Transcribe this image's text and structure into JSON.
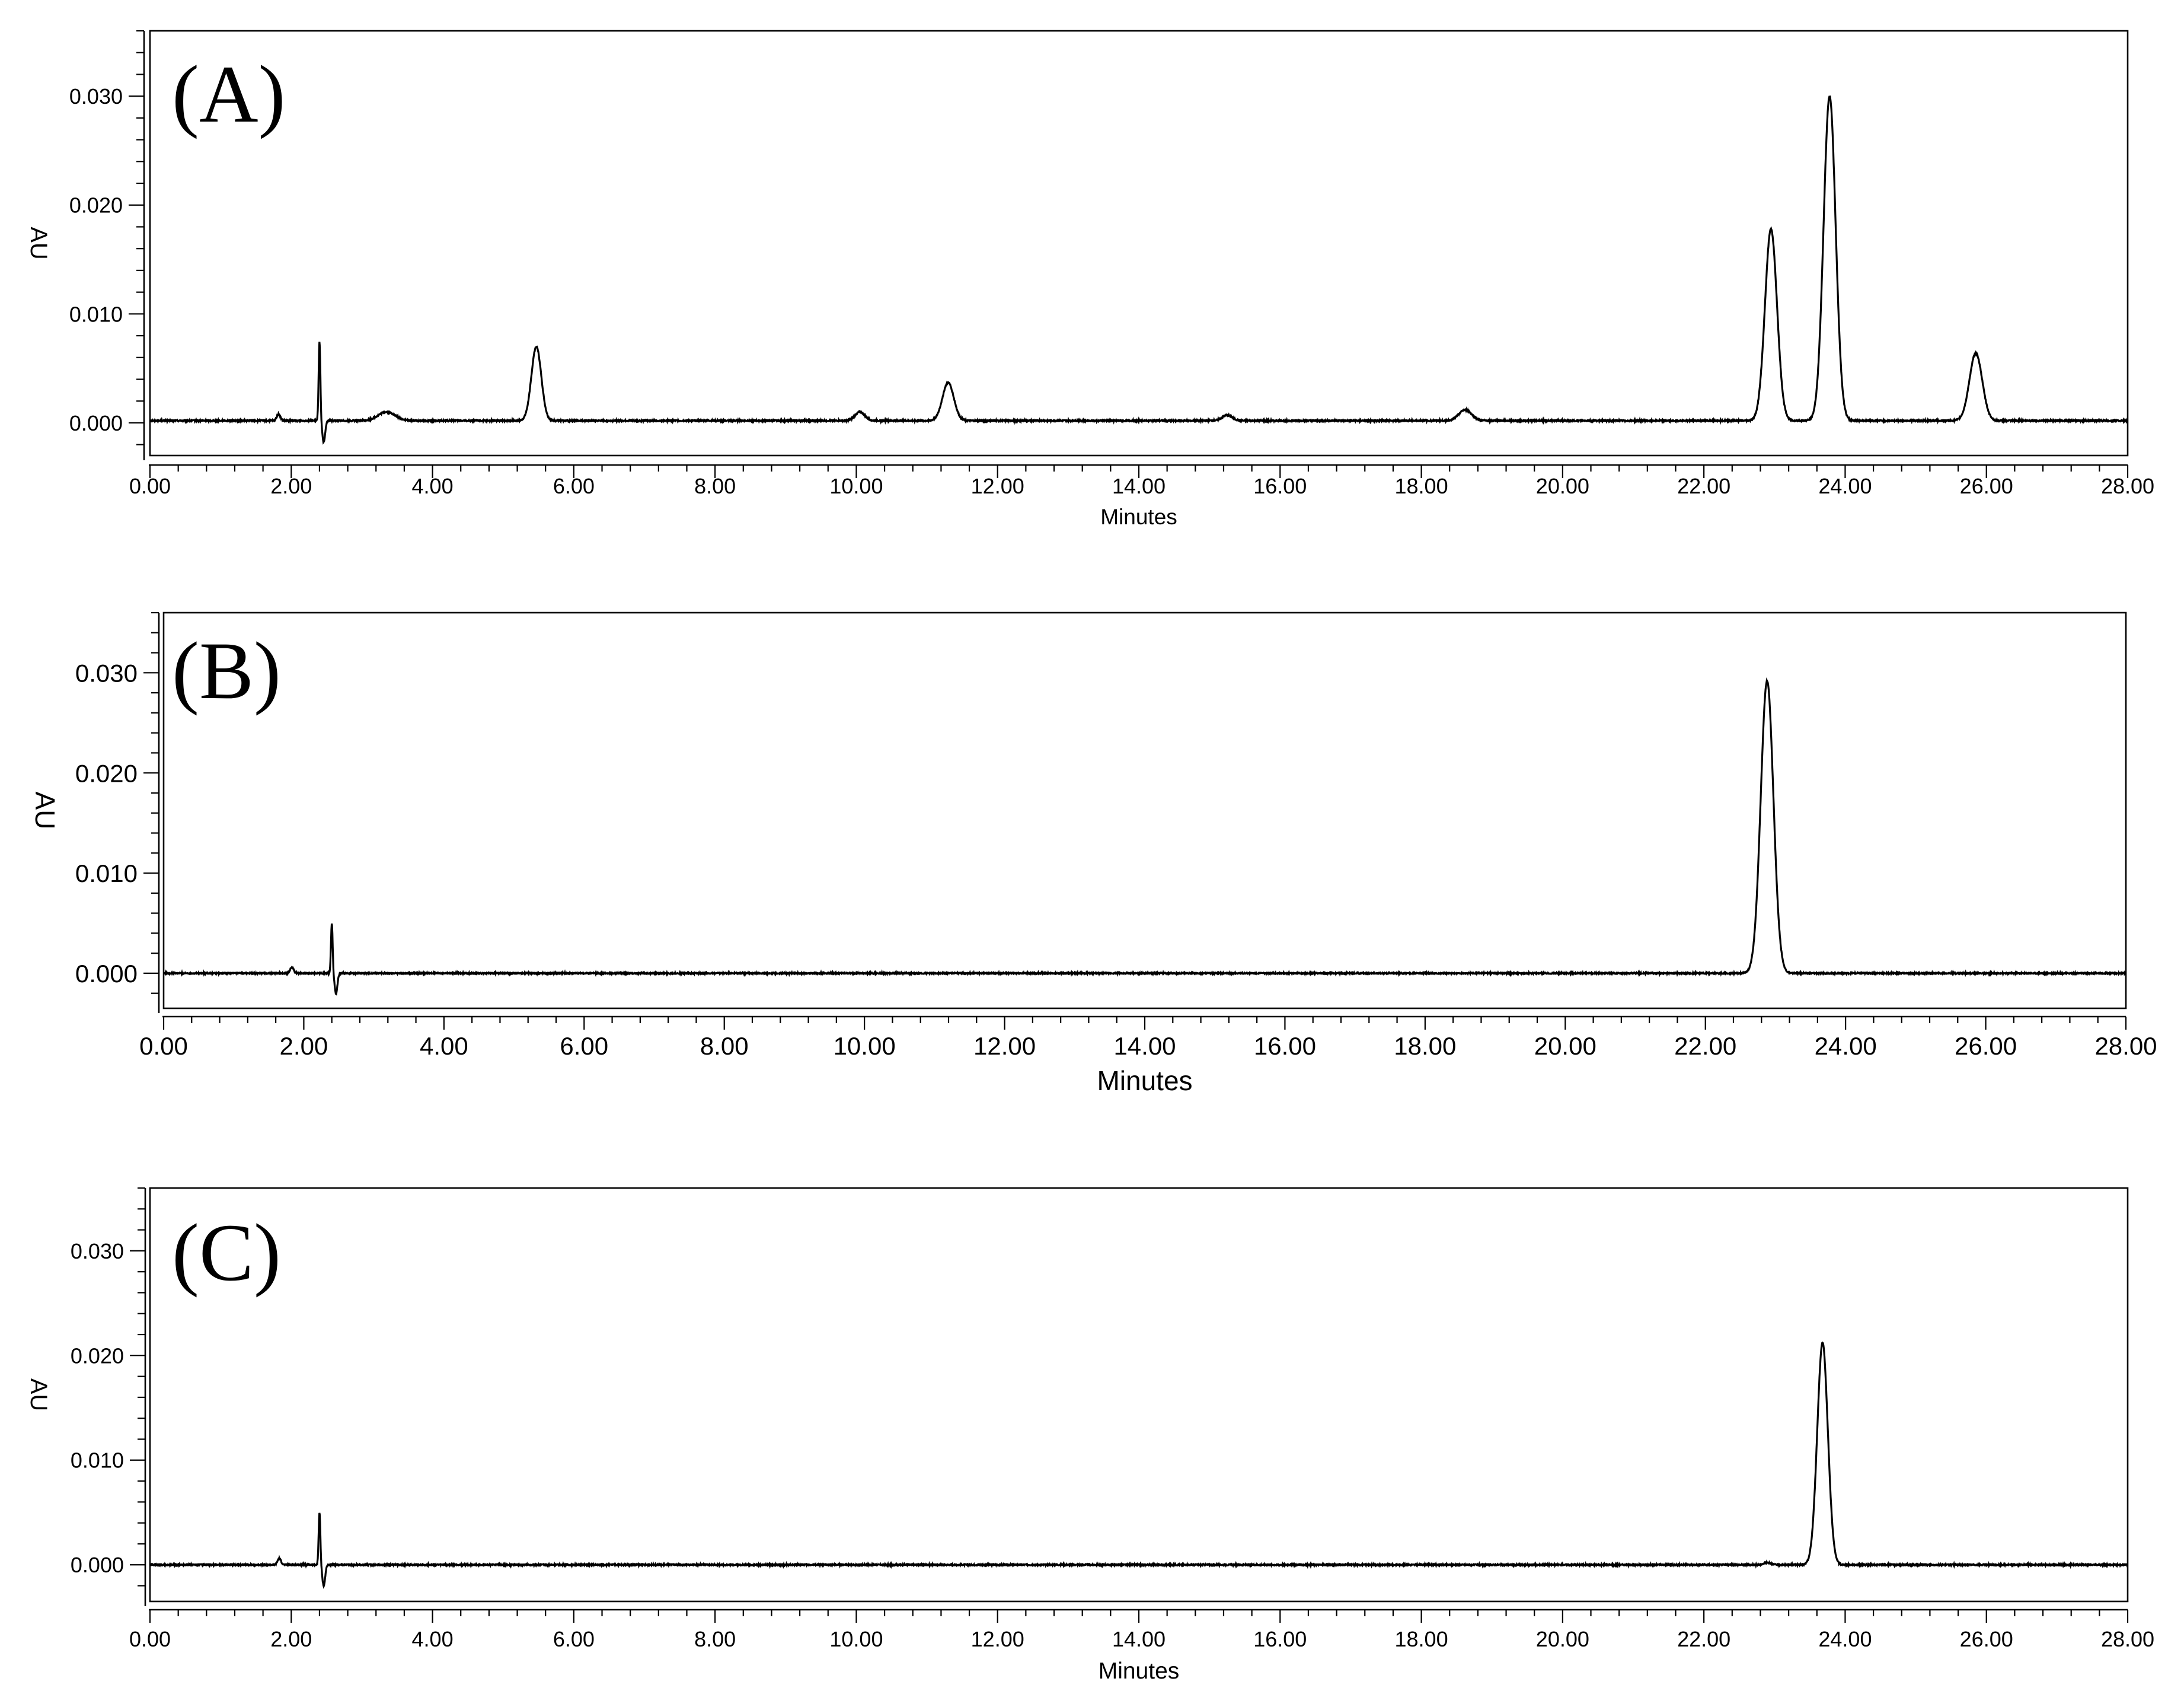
{
  "chart_data": [
    {
      "type": "line",
      "panel_label": "(A)",
      "xlabel": "Minutes",
      "ylabel": "AU",
      "xlim": [
        0,
        28
      ],
      "ylim": [
        -0.003,
        0.036
      ],
      "x_ticks": [
        "0.00",
        "2.00",
        "4.00",
        "6.00",
        "8.00",
        "10.00",
        "12.00",
        "14.00",
        "16.00",
        "18.00",
        "20.00",
        "22.00",
        "24.00",
        "26.00",
        "28.00"
      ],
      "y_ticks": [
        "0.000",
        "0.010",
        "0.020",
        "0.030"
      ],
      "baseline": 0.0002,
      "peaks": [
        {
          "rt": 1.82,
          "height": 0.0006,
          "width": 0.025
        },
        {
          "rt": 3.35,
          "height": 0.0008,
          "width": 0.12
        },
        {
          "rt": 5.47,
          "height": 0.0068,
          "width": 0.07
        },
        {
          "rt": 10.05,
          "height": 0.0008,
          "width": 0.07
        },
        {
          "rt": 11.3,
          "height": 0.0035,
          "width": 0.08
        },
        {
          "rt": 15.25,
          "height": 0.0005,
          "width": 0.07
        },
        {
          "rt": 18.62,
          "height": 0.001,
          "width": 0.09
        },
        {
          "rt": 22.95,
          "height": 0.0176,
          "width": 0.085
        },
        {
          "rt": 23.78,
          "height": 0.0298,
          "width": 0.085
        },
        {
          "rt": 25.85,
          "height": 0.0062,
          "width": 0.09
        }
      ],
      "solvent_front": {
        "rt": 2.4,
        "max": 0.0073,
        "min": -0.002
      }
    },
    {
      "type": "line",
      "panel_label": "(B)",
      "xlabel": "Minutes",
      "ylabel": "AU",
      "xlim": [
        0,
        28
      ],
      "ylim": [
        -0.0035,
        0.036
      ],
      "x_ticks": [
        "0.00",
        "2.00",
        "4.00",
        "6.00",
        "8.00",
        "10.00",
        "12.00",
        "14.00",
        "16.00",
        "18.00",
        "20.00",
        "22.00",
        "24.00",
        "26.00",
        "28.00"
      ],
      "y_ticks": [
        "0.000",
        "0.010",
        "0.020",
        "0.030"
      ],
      "baseline": 0.0,
      "peaks": [
        {
          "rt": 1.83,
          "height": 0.0006,
          "width": 0.025
        },
        {
          "rt": 22.88,
          "height": 0.0292,
          "width": 0.09
        }
      ],
      "solvent_front": {
        "rt": 2.4,
        "max": 0.005,
        "min": -0.002
      }
    },
    {
      "type": "line",
      "panel_label": "(C)",
      "xlabel": "Minutes",
      "ylabel": "AU",
      "xlim": [
        0,
        28
      ],
      "ylim": [
        -0.0035,
        0.036
      ],
      "x_ticks": [
        "0.00",
        "2.00",
        "4.00",
        "6.00",
        "8.00",
        "10.00",
        "12.00",
        "14.00",
        "16.00",
        "18.00",
        "20.00",
        "22.00",
        "24.00",
        "26.00",
        "28.00"
      ],
      "y_ticks": [
        "0.000",
        "0.010",
        "0.020",
        "0.030"
      ],
      "baseline": 0.0,
      "peaks": [
        {
          "rt": 1.83,
          "height": 0.0006,
          "width": 0.025
        },
        {
          "rt": 22.9,
          "height": 0.0002,
          "width": 0.05
        },
        {
          "rt": 23.68,
          "height": 0.0212,
          "width": 0.075
        }
      ],
      "solvent_front": {
        "rt": 2.4,
        "max": 0.005,
        "min": -0.002
      }
    }
  ]
}
